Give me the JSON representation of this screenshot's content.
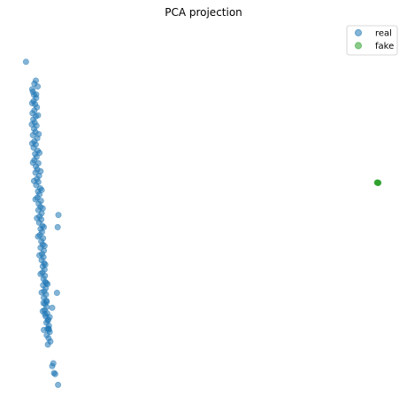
{
  "chart_data": {
    "type": "scatter",
    "title": "PCA projection",
    "xlabel": "",
    "ylabel": "",
    "axes_visible": false,
    "grid": false,
    "legend": "top-right",
    "xlim": [
      0,
      100
    ],
    "ylim": [
      0,
      100
    ],
    "series": [
      {
        "name": "real",
        "color": "#1f77b4",
        "opacity": 0.55,
        "points": [
          [
            1.3,
            92.4
          ],
          [
            3.0,
            84.5
          ],
          [
            3.2,
            83.8
          ],
          [
            3.5,
            82.9
          ],
          [
            4.1,
            82.0
          ],
          [
            3.4,
            81.1
          ],
          [
            3.8,
            80.2
          ],
          [
            4.3,
            79.3
          ],
          [
            3.6,
            78.4
          ],
          [
            3.1,
            77.6
          ],
          [
            4.0,
            76.7
          ],
          [
            3.3,
            75.8
          ],
          [
            3.7,
            74.9
          ],
          [
            4.2,
            74.0
          ],
          [
            3.5,
            73.1
          ],
          [
            3.9,
            72.2
          ],
          [
            3.2,
            71.3
          ],
          [
            4.4,
            70.4
          ],
          [
            3.6,
            69.5
          ],
          [
            4.0,
            68.6
          ],
          [
            3.4,
            67.7
          ],
          [
            4.5,
            66.8
          ],
          [
            3.8,
            65.9
          ],
          [
            4.2,
            65.0
          ],
          [
            3.6,
            64.1
          ],
          [
            4.7,
            63.2
          ],
          [
            4.0,
            62.3
          ],
          [
            4.4,
            61.4
          ],
          [
            3.9,
            60.5
          ],
          [
            4.9,
            59.6
          ],
          [
            4.3,
            58.7
          ],
          [
            4.7,
            57.8
          ],
          [
            4.1,
            56.9
          ],
          [
            5.2,
            56.0
          ],
          [
            4.6,
            55.1
          ],
          [
            5.0,
            54.2
          ],
          [
            4.4,
            53.3
          ],
          [
            5.4,
            52.4
          ],
          [
            4.8,
            51.5
          ],
          [
            5.3,
            50.6
          ],
          [
            4.7,
            49.7
          ],
          [
            5.6,
            48.8
          ],
          [
            5.0,
            47.9
          ],
          [
            5.5,
            47.0
          ],
          [
            4.9,
            46.1
          ],
          [
            5.8,
            45.2
          ],
          [
            5.3,
            44.3
          ],
          [
            5.7,
            43.4
          ],
          [
            5.1,
            42.5
          ],
          [
            6.0,
            41.6
          ],
          [
            5.5,
            40.7
          ],
          [
            5.9,
            39.8
          ],
          [
            5.3,
            38.9
          ],
          [
            6.2,
            38.0
          ],
          [
            5.7,
            37.1
          ],
          [
            6.1,
            36.2
          ],
          [
            5.6,
            35.3
          ],
          [
            6.3,
            34.4
          ],
          [
            5.9,
            33.5
          ],
          [
            6.4,
            32.6
          ],
          [
            5.8,
            31.7
          ],
          [
            6.5,
            30.8
          ],
          [
            6.1,
            29.9
          ],
          [
            6.6,
            29.0
          ],
          [
            6.0,
            28.1
          ],
          [
            6.7,
            27.2
          ],
          [
            6.3,
            26.3
          ],
          [
            6.8,
            25.4
          ],
          [
            6.2,
            24.5
          ],
          [
            6.9,
            23.6
          ],
          [
            6.5,
            22.7
          ],
          [
            7.0,
            21.8
          ],
          [
            6.4,
            20.9
          ],
          [
            7.1,
            20.0
          ],
          [
            6.7,
            19.1
          ],
          [
            7.4,
            18.2
          ],
          [
            6.9,
            17.3
          ],
          [
            7.6,
            16.4
          ],
          [
            7.2,
            15.5
          ],
          [
            7.8,
            14.6
          ],
          [
            7.0,
            13.7
          ],
          [
            7.5,
            12.8
          ],
          [
            8.0,
            11.9
          ],
          [
            7.3,
            11.0
          ],
          [
            4.1,
            83.0
          ],
          [
            3.0,
            80.5
          ],
          [
            4.6,
            77.0
          ],
          [
            2.9,
            74.4
          ],
          [
            4.8,
            71.6
          ],
          [
            3.0,
            68.9
          ],
          [
            5.0,
            66.2
          ],
          [
            3.2,
            63.4
          ],
          [
            5.3,
            60.9
          ],
          [
            3.5,
            58.1
          ],
          [
            5.6,
            55.5
          ],
          [
            3.9,
            52.8
          ],
          [
            5.9,
            50.2
          ],
          [
            4.3,
            47.4
          ],
          [
            6.2,
            44.8
          ],
          [
            4.6,
            42.1
          ],
          [
            6.4,
            39.4
          ],
          [
            5.0,
            36.7
          ],
          [
            6.6,
            34.0
          ],
          [
            5.3,
            31.3
          ],
          [
            6.9,
            28.7
          ],
          [
            5.6,
            26.0
          ],
          [
            7.0,
            23.3
          ],
          [
            5.9,
            20.6
          ],
          [
            7.3,
            17.9
          ],
          [
            6.2,
            15.2
          ],
          [
            4.0,
            87.0
          ],
          [
            3.6,
            86.1
          ],
          [
            4.5,
            85.3
          ],
          [
            10.2,
            48.3
          ],
          [
            10.0,
            44.8
          ],
          [
            7.2,
            28.4
          ],
          [
            9.8,
            25.9
          ],
          [
            6.1,
            23.0
          ],
          [
            8.5,
            21.6
          ],
          [
            7.8,
            18.9
          ],
          [
            6.5,
            19.8
          ],
          [
            7.5,
            15.6
          ],
          [
            7.6,
            15.3
          ],
          [
            8.8,
            5.6
          ],
          [
            8.5,
            4.8
          ],
          [
            9.0,
            2.8
          ],
          [
            9.3,
            2.5
          ],
          [
            10.1,
            -0.6
          ]
        ]
      },
      {
        "name": "fake",
        "color": "#2ca02c",
        "opacity": 0.55,
        "points": [
          [
            97.6,
            57.6
          ],
          [
            97.8,
            57.6
          ],
          [
            98.0,
            57.6
          ],
          [
            97.7,
            57.7
          ],
          [
            97.9,
            57.5
          ]
        ]
      }
    ]
  }
}
